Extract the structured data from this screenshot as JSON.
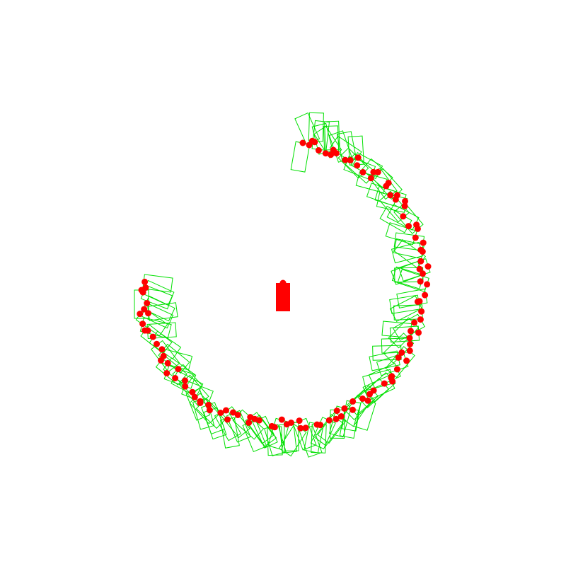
{
  "scene": {
    "background_color": "#ffffff",
    "outline_color": "#00e000",
    "marker_color": "#ff0000",
    "center_block_color": "#ff0000",
    "arc_samples": 112,
    "arc_start_deg": 180,
    "arc_end_deg": 260
  }
}
